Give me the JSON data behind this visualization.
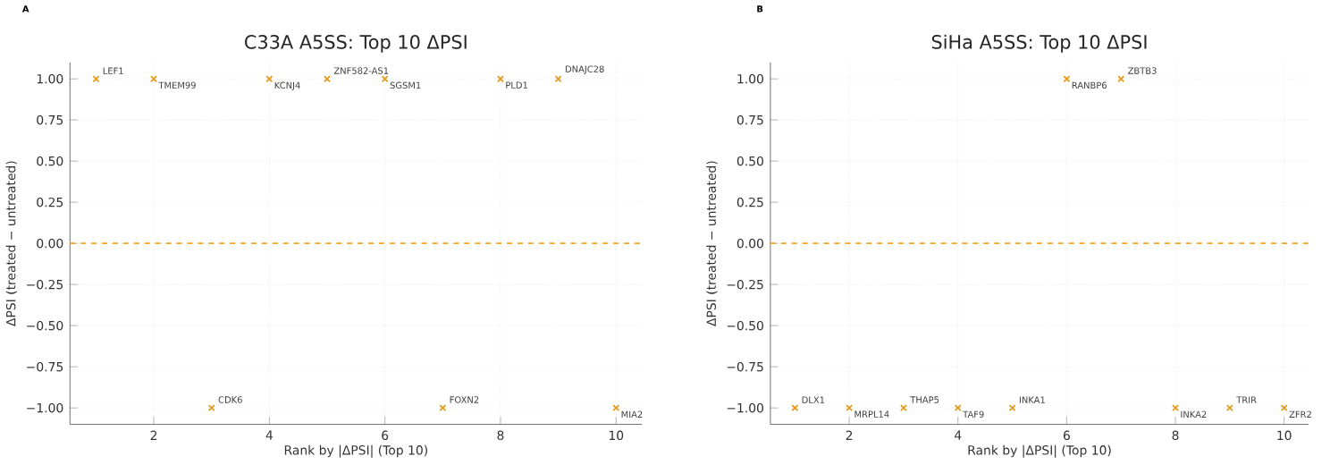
{
  "chart_data": [
    {
      "type": "scatter",
      "title": "C33A A5SS: Top 10 ΔPSI",
      "xlabel": "Rank by |ΔPSI| (Top 10)",
      "ylabel": "ΔPSI (treated − untreated)",
      "x": [
        1,
        2,
        3,
        4,
        5,
        6,
        7,
        8,
        9,
        10
      ],
      "values": [
        1,
        1,
        -1,
        1,
        1,
        1,
        -1,
        1,
        1,
        -1
      ],
      "color": "#e69a1c",
      "marker": "cross",
      "xlim": [
        0.55,
        10.45
      ],
      "ylim": [
        -1.1,
        1.1
      ],
      "xticks": [
        2,
        4,
        6,
        8,
        10
      ],
      "yticks": [
        {
          "value": -1,
          "label": "−1.00"
        },
        {
          "value": -0.75,
          "label": "−0.75"
        },
        {
          "value": -0.5,
          "label": "−0.50"
        },
        {
          "value": -0.25,
          "label": "−0.25"
        },
        {
          "value": 0,
          "label": "0.00"
        },
        {
          "value": 0.25,
          "label": "0.25"
        },
        {
          "value": 0.5,
          "label": "0.50"
        },
        {
          "value": 0.75,
          "label": "0.75"
        },
        {
          "value": 1,
          "label": "1.00"
        }
      ],
      "grid": true,
      "ref_lines": [
        {
          "axis": "y",
          "value": 0,
          "color": "#f5a623",
          "line_style": "dashed"
        }
      ],
      "annotations": [
        "A",
        {
          "text": "LEF1",
          "x": 1,
          "y": 1
        },
        {
          "text": "TMEM99",
          "x": 2,
          "y": 1
        },
        {
          "text": "CDK6",
          "x": 3,
          "y": -1
        },
        {
          "text": "KCNJ4",
          "x": 4,
          "y": 1
        },
        {
          "text": "ZNF582-AS1",
          "x": 5,
          "y": 1
        },
        {
          "text": "SGSM1",
          "x": 6,
          "y": 1
        },
        {
          "text": "FOXN2",
          "x": 7,
          "y": -1
        },
        {
          "text": "PLD1",
          "x": 8,
          "y": 1
        },
        {
          "text": "DNAJC28",
          "x": 9,
          "y": 1
        },
        {
          "text": "MIA2",
          "x": 10,
          "y": -1
        }
      ]
    },
    {
      "type": "scatter",
      "title": "SiHa A5SS: Top 10 ΔPSI",
      "xlabel": "Rank by |ΔPSI| (Top 10)",
      "ylabel": "ΔPSI (treated − untreated)",
      "x": [
        1,
        2,
        3,
        4,
        5,
        6,
        7,
        8,
        9,
        10
      ],
      "values": [
        -1,
        -1,
        -1,
        -1,
        -1,
        1,
        1,
        -1,
        -1,
        -1
      ],
      "color": "#e69a1c",
      "marker": "cross",
      "xlim": [
        0.55,
        10.45
      ],
      "ylim": [
        -1.1,
        1.1
      ],
      "xticks": [
        2,
        4,
        6,
        8,
        10
      ],
      "yticks": [
        {
          "value": -1,
          "label": "−1.00"
        },
        {
          "value": -0.75,
          "label": "−0.75"
        },
        {
          "value": -0.5,
          "label": "−0.50"
        },
        {
          "value": -0.25,
          "label": "−0.25"
        },
        {
          "value": 0,
          "label": "0.00"
        },
        {
          "value": 0.25,
          "label": "0.25"
        },
        {
          "value": 0.5,
          "label": "0.50"
        },
        {
          "value": 0.75,
          "label": "0.75"
        },
        {
          "value": 1,
          "label": "1.00"
        }
      ],
      "grid": true,
      "ref_lines": [
        {
          "axis": "y",
          "value": 0,
          "color": "#f5a623",
          "line_style": "dashed"
        }
      ],
      "annotations": [
        "B",
        {
          "text": "DLX1",
          "x": 1,
          "y": -1
        },
        {
          "text": "MRPL14",
          "x": 2,
          "y": -1
        },
        {
          "text": "THAP5",
          "x": 3,
          "y": -1
        },
        {
          "text": "TAF9",
          "x": 4,
          "y": -1
        },
        {
          "text": "INKA1",
          "x": 5,
          "y": -1
        },
        {
          "text": "RANBP6",
          "x": 6,
          "y": 1
        },
        {
          "text": "ZBTB3",
          "x": 7,
          "y": 1
        },
        {
          "text": "INKA2",
          "x": 8,
          "y": -1
        },
        {
          "text": "TRIR",
          "x": 9,
          "y": -1
        },
        {
          "text": "ZFR2",
          "x": 10,
          "y": -1
        }
      ]
    }
  ]
}
